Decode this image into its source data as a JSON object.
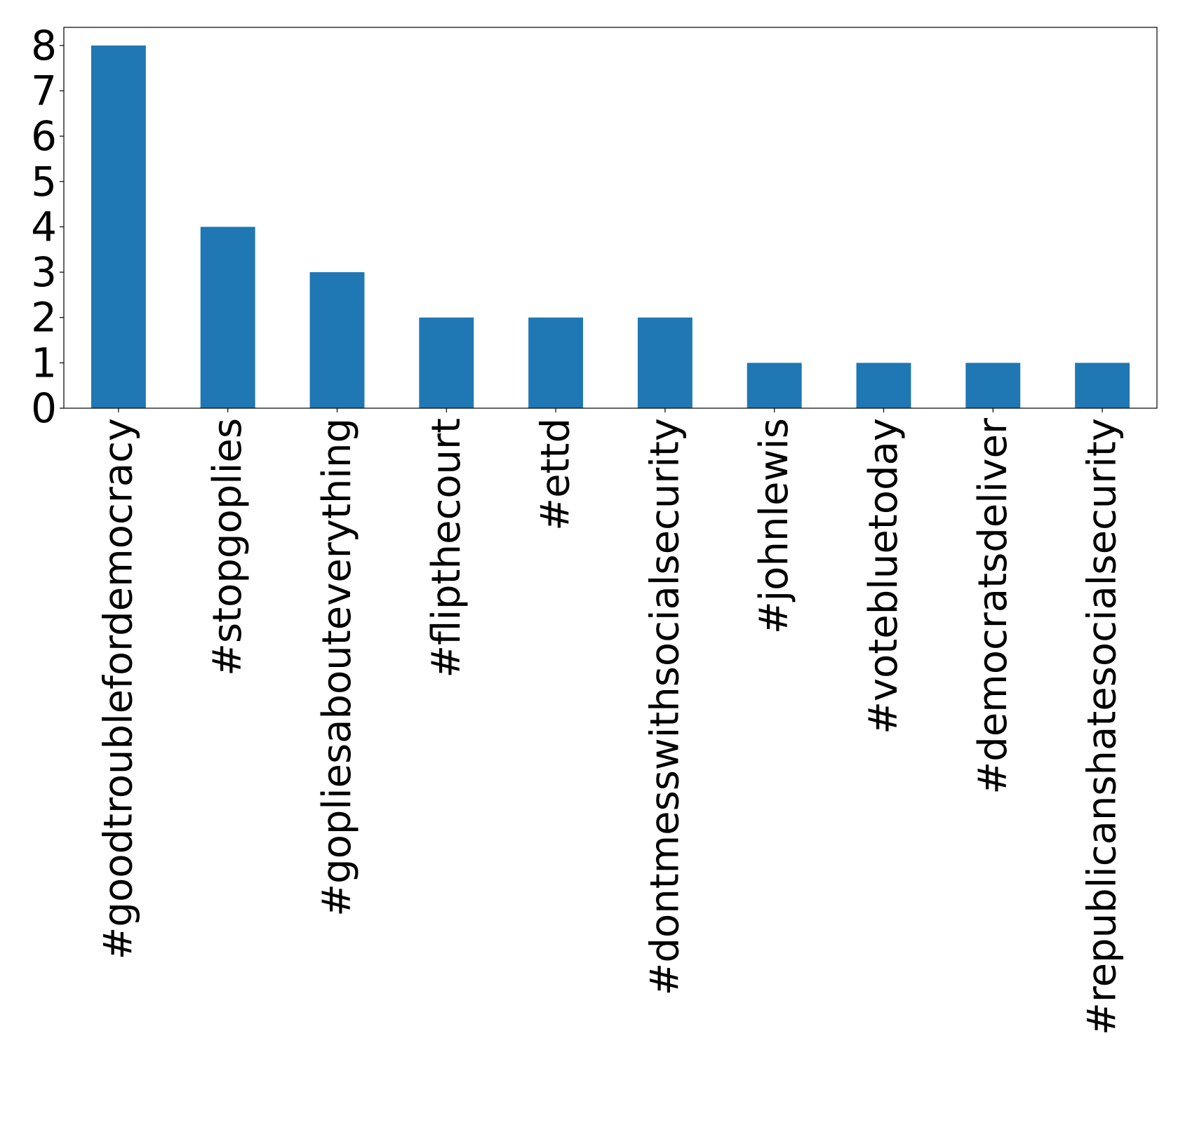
{
  "chart_data": {
    "type": "bar",
    "title": "",
    "xlabel": "",
    "ylabel": "",
    "categories": [
      "#goodtroublefordemocracy",
      "#stopgoplies",
      "#gopliesabouteverything",
      "#flipthecourt",
      "#ettd",
      "#dontmesswithsocialsecurity",
      "#johnlewis",
      "#votebluetoday",
      "#democratsdeliver",
      "#republicanshatesocialsecurity"
    ],
    "values": [
      8,
      4,
      3,
      2,
      2,
      2,
      1,
      1,
      1,
      1
    ],
    "ylim": [
      0,
      8.4
    ],
    "yticks": [
      0,
      1,
      2,
      3,
      4,
      5,
      6,
      7,
      8
    ],
    "grid": false,
    "legend": "none",
    "bar_color": "#1f77b4"
  }
}
